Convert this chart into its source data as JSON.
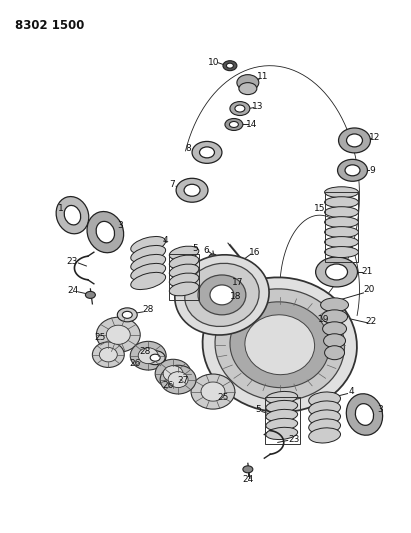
{
  "title": "8302 1500",
  "bg_color": "#ffffff",
  "fig_width": 4.11,
  "fig_height": 5.33,
  "dpi": 100,
  "line_color": "#222222",
  "part_color": "#cccccc",
  "dark_color": "#555555"
}
